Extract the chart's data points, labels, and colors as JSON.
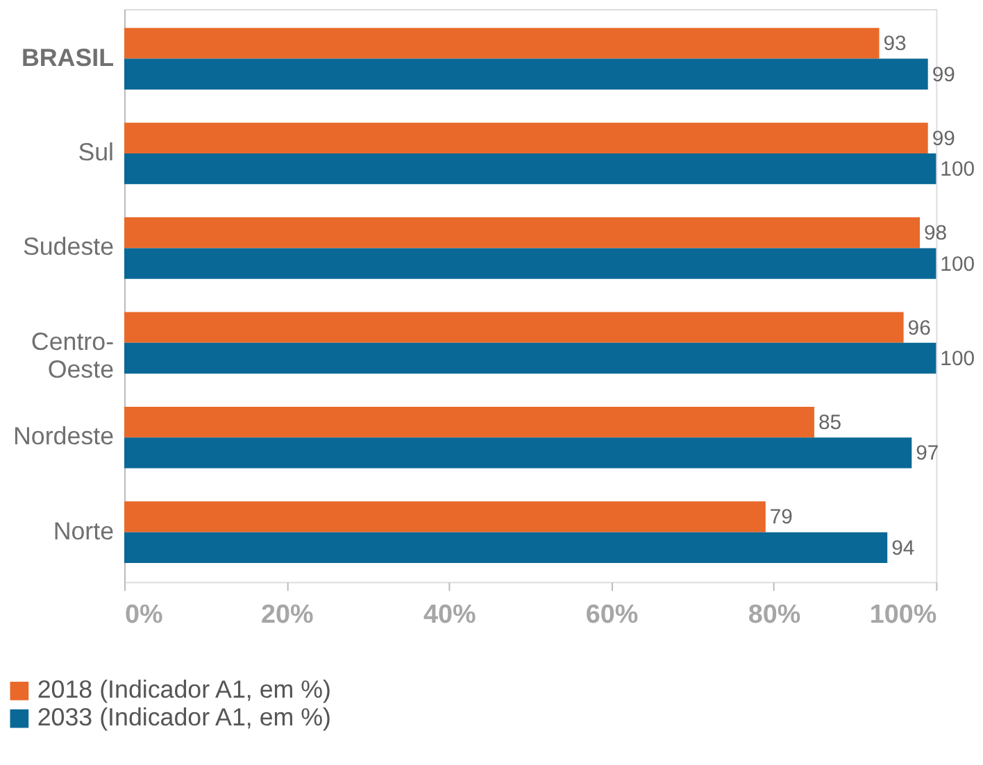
{
  "chart_data": {
    "type": "bar",
    "orientation": "horizontal",
    "categories": [
      "BRASIL",
      "Sul",
      "Sudeste",
      "Centro-Oeste",
      "Nordeste",
      "Norte"
    ],
    "series": [
      {
        "name": "2018 (Indicador A1, em %)",
        "color": "#e8692a",
        "values": [
          93,
          99,
          98,
          96,
          85,
          79
        ]
      },
      {
        "name": "2033 (Indicador A1, em %)",
        "color": "#0a6896",
        "values": [
          99,
          100,
          100,
          100,
          97,
          94
        ]
      }
    ],
    "xlim": [
      0,
      100
    ],
    "xticks": [
      {
        "value": 0,
        "label": "0%"
      },
      {
        "value": 20,
        "label": "20%"
      },
      {
        "value": 40,
        "label": "40%"
      },
      {
        "value": 60,
        "label": "60%"
      },
      {
        "value": 80,
        "label": "80%"
      },
      {
        "value": 100,
        "label": "100%"
      }
    ],
    "data_labels": true,
    "legend": "bottom left",
    "grid": false
  }
}
